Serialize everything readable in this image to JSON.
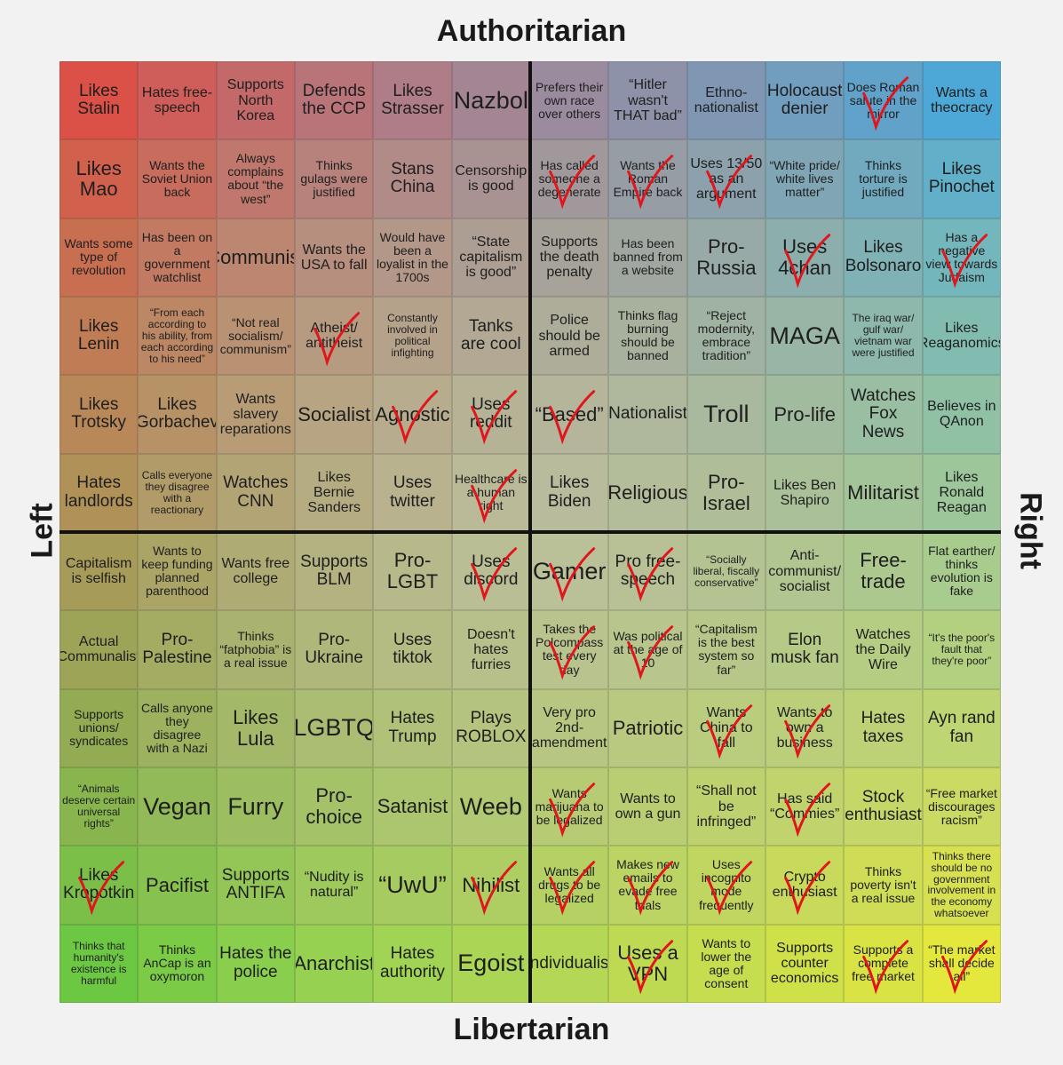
{
  "axes": {
    "top": "Authoritarian",
    "bottom": "Libertarian",
    "left": "Left",
    "right": "Right"
  },
  "grid": [
    [
      {
        "text": "Likes Stalin"
      },
      {
        "text": "Hates free-speech"
      },
      {
        "text": "Supports North Korea"
      },
      {
        "text": "Defends the CCP"
      },
      {
        "text": "Likes Strasser"
      },
      {
        "text": "Nazbol"
      },
      {
        "text": "Prefers their own race over others"
      },
      {
        "text": "“Hitler wasn't THAT bad”"
      },
      {
        "text": "Ethno-nationalist"
      },
      {
        "text": "Holocaust denier"
      },
      {
        "text": "Does Roman salute in the mirror",
        "checked": true
      },
      {
        "text": "Wants a theocracy"
      }
    ],
    [
      {
        "text": "Likes Mao"
      },
      {
        "text": "Wants the Soviet Union back"
      },
      {
        "text": "Always complains about “the west”"
      },
      {
        "text": "Thinks gulags were justified"
      },
      {
        "text": "Stans China"
      },
      {
        "text": "Censorship is good"
      },
      {
        "text": "Has called someone a degenerate",
        "checked": true
      },
      {
        "text": "Wants the Roman Empire back",
        "checked": true
      },
      {
        "text": "Uses 13/50 as an argument",
        "checked": true
      },
      {
        "text": "“White pride/ white lives matter”"
      },
      {
        "text": "Thinks torture is justified"
      },
      {
        "text": "Likes Pinochet"
      }
    ],
    [
      {
        "text": "Wants some type of revolution"
      },
      {
        "text": "Has been on a government watchlist"
      },
      {
        "text": "Communist"
      },
      {
        "text": "Wants the USA to fall"
      },
      {
        "text": "Would have been a loyalist in the 1700s"
      },
      {
        "text": "“State capitalism is good”"
      },
      {
        "text": "Supports the death penalty"
      },
      {
        "text": "Has been banned from a website"
      },
      {
        "text": "Pro-Russia"
      },
      {
        "text": "Uses 4chan",
        "checked": true
      },
      {
        "text": "Likes Bolsonaro"
      },
      {
        "text": "Has a negative view towards Judaism",
        "checked": true
      }
    ],
    [
      {
        "text": "Likes Lenin"
      },
      {
        "text": "“From each according to his ability, from each according to his need”"
      },
      {
        "text": "“Not real socialism/ communism”"
      },
      {
        "text": "Atheist/ antitheist",
        "checked": true
      },
      {
        "text": "Constantly involved in political infighting"
      },
      {
        "text": "Tanks are cool"
      },
      {
        "text": "Police should be armed"
      },
      {
        "text": "Thinks flag burning should be banned"
      },
      {
        "text": "“Reject modernity, embrace tradition”"
      },
      {
        "text": "MAGA"
      },
      {
        "text": "The iraq war/ gulf war/ vietnam war were justified"
      },
      {
        "text": "Likes Reaganomics"
      }
    ],
    [
      {
        "text": "Likes Trotsky"
      },
      {
        "text": "Likes Gorbachev"
      },
      {
        "text": "Wants slavery reparations"
      },
      {
        "text": "Socialist"
      },
      {
        "text": "Agnostic",
        "checked": true
      },
      {
        "text": "Uses reddit",
        "checked": true
      },
      {
        "text": "“Based”",
        "checked": true
      },
      {
        "text": "Nationalist"
      },
      {
        "text": "Troll"
      },
      {
        "text": "Pro-life"
      },
      {
        "text": "Watches Fox News"
      },
      {
        "text": "Believes in QAnon"
      }
    ],
    [
      {
        "text": "Hates landlords"
      },
      {
        "text": "Calls everyone they disagree with a reactionary"
      },
      {
        "text": "Watches CNN"
      },
      {
        "text": "Likes Bernie Sanders"
      },
      {
        "text": "Uses twitter"
      },
      {
        "text": "Healthcare is a human right",
        "checked": true
      },
      {
        "text": "Likes Biden"
      },
      {
        "text": "Religious"
      },
      {
        "text": "Pro-Israel"
      },
      {
        "text": "Likes Ben Shapiro"
      },
      {
        "text": "Militarist"
      },
      {
        "text": "Likes Ronald Reagan"
      }
    ],
    [
      {
        "text": "Capitalism is selfish"
      },
      {
        "text": "Wants to keep funding planned parenthood"
      },
      {
        "text": "Wants free college"
      },
      {
        "text": "Supports BLM"
      },
      {
        "text": "Pro-LGBT"
      },
      {
        "text": "Uses discord",
        "checked": true
      },
      {
        "text": "Gamer",
        "checked": true
      },
      {
        "text": "Pro free-speech",
        "checked": true
      },
      {
        "text": "“Socially liberal, fiscally conservative”"
      },
      {
        "text": "Anti-communist/ socialist"
      },
      {
        "text": "Free-trade"
      },
      {
        "text": "Flat earther/ thinks evolution is fake"
      }
    ],
    [
      {
        "text": "Actual Communalist"
      },
      {
        "text": "Pro-Palestine"
      },
      {
        "text": "Thinks “fatphobia” is a real issue"
      },
      {
        "text": "Pro-Ukraine"
      },
      {
        "text": "Uses tiktok"
      },
      {
        "text": "Doesn't hates furries"
      },
      {
        "text": "Takes the Polcompass test every day",
        "checked": true
      },
      {
        "text": "Was political at the age of 10",
        "checked": true
      },
      {
        "text": "“Capitalism is the best system so far”"
      },
      {
        "text": "Elon musk fan"
      },
      {
        "text": "Watches the Daily Wire"
      },
      {
        "text": "“It's the poor's fault that they're poor”"
      }
    ],
    [
      {
        "text": "Supports unions/ syndicates"
      },
      {
        "text": "Calls anyone they disagree with a Nazi"
      },
      {
        "text": "Likes Lula"
      },
      {
        "text": "LGBTQ"
      },
      {
        "text": "Hates Trump"
      },
      {
        "text": "Plays ROBLOX"
      },
      {
        "text": "Very pro 2nd-amendment"
      },
      {
        "text": "Patriotic"
      },
      {
        "text": "Wants China to fall",
        "checked": true
      },
      {
        "text": "Wants to own a business",
        "checked": true
      },
      {
        "text": "Hates taxes"
      },
      {
        "text": "Ayn rand fan"
      }
    ],
    [
      {
        "text": "“Animals deserve certain universal rights”"
      },
      {
        "text": "Vegan"
      },
      {
        "text": "Furry"
      },
      {
        "text": "Pro-choice"
      },
      {
        "text": "Satanist"
      },
      {
        "text": "Weeb"
      },
      {
        "text": "Wants marijuana to be legalized",
        "checked": true
      },
      {
        "text": "Wants to own a gun"
      },
      {
        "text": "“Shall not be infringed”"
      },
      {
        "text": "Has said “Commies”",
        "checked": true
      },
      {
        "text": "Stock enthusiast"
      },
      {
        "text": "“Free market discourages racism”"
      }
    ],
    [
      {
        "text": "Likes Kropotkin",
        "checked": true
      },
      {
        "text": "Pacifist"
      },
      {
        "text": "Supports ANTIFA"
      },
      {
        "text": "“Nudity is natural”"
      },
      {
        "text": "“UwU”"
      },
      {
        "text": "Nihilist",
        "checked": true
      },
      {
        "text": "Wants all drugs to be legalized",
        "checked": true
      },
      {
        "text": "Makes new emails to evade free trials",
        "checked": true
      },
      {
        "text": "Uses incognito mode frequently",
        "checked": true
      },
      {
        "text": "Crypto enthusiast",
        "checked": true
      },
      {
        "text": "Thinks poverty isn't a real issue"
      },
      {
        "text": "Thinks there should be no government involvement in the economy whatsoever"
      }
    ],
    [
      {
        "text": "Thinks that humanity's existence is harmful"
      },
      {
        "text": "Thinks AnCap is an oxymoron"
      },
      {
        "text": "Hates the police"
      },
      {
        "text": "Anarchist"
      },
      {
        "text": "Hates authority"
      },
      {
        "text": "Egoist"
      },
      {
        "text": "Individualist"
      },
      {
        "text": "Uses a VPN",
        "checked": true
      },
      {
        "text": "Wants to lower the age of consent"
      },
      {
        "text": "Supports counter economics"
      },
      {
        "text": "Supports a complete free market",
        "checked": true
      },
      {
        "text": "“The market shall decide all”",
        "checked": true
      }
    ]
  ]
}
